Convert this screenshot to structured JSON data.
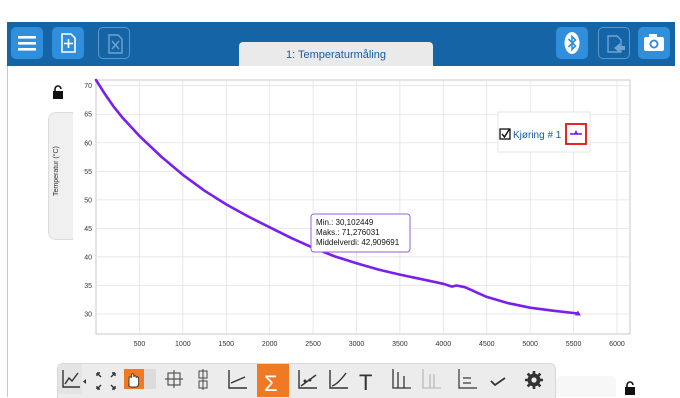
{
  "app": {
    "tab_label": "1: Temperaturmåling"
  },
  "topbar": {
    "left_buttons": [
      {
        "icon": "menu-icon"
      },
      {
        "icon": "new-page-icon"
      },
      {
        "icon": "delete-page-icon"
      }
    ],
    "right_buttons": [
      {
        "icon": "bluetooth-icon"
      },
      {
        "icon": "export-icon"
      },
      {
        "icon": "camera-icon"
      }
    ],
    "colors": {
      "bar": "#1565a6",
      "button": "#2f8fdc"
    }
  },
  "graph": {
    "ylabel": "Temperatur (°C)",
    "legend": {
      "label": "Kjøring # 1",
      "checked": true
    },
    "stats": {
      "min": "Min.: 30,102449",
      "max": "Maks.: 71,276031",
      "mean": "Middelverdi: 42,909691"
    }
  },
  "chart_data": {
    "type": "line",
    "xlim": [
      0,
      6150
    ],
    "ylim": [
      26.5,
      71
    ],
    "x_ticks": [
      "500",
      "1000",
      "1500",
      "2000",
      "2500",
      "3000",
      "3500",
      "4000",
      "4500",
      "5000",
      "5500",
      "6000"
    ],
    "y_ticks": [
      "30",
      "35",
      "40",
      "45",
      "50",
      "55",
      "60",
      "65",
      "70"
    ],
    "grid": true,
    "legend_position": "top-right",
    "series": [
      {
        "name": "Kjøring # 1",
        "color": "#7a1fe8",
        "x": [
          0,
          100,
          200,
          300,
          500,
          750,
          1000,
          1250,
          1500,
          1750,
          2000,
          2250,
          2500,
          2750,
          3000,
          3250,
          3500,
          3750,
          4000,
          4100,
          4150,
          4250,
          4500,
          4750,
          5000,
          5250,
          5550
        ],
        "y": [
          71,
          68.6,
          66.4,
          64.5,
          61.2,
          57.6,
          54.4,
          51.6,
          49.2,
          47.1,
          45.2,
          43.3,
          41.6,
          40.1,
          38.9,
          37.8,
          36.9,
          36.1,
          35.3,
          34.8,
          35.0,
          34.7,
          33.0,
          31.9,
          31.1,
          30.6,
          30.1
        ]
      }
    ]
  },
  "toolbar": {
    "tools": [
      {
        "icon": "graph-options-icon"
      },
      {
        "icon": "autoscale-icon"
      },
      {
        "icon": "pan-icon",
        "active": true
      },
      {
        "icon": "examine-icon"
      },
      {
        "icon": "zoom-icon"
      },
      {
        "icon": "tangent-icon"
      },
      {
        "icon": "statistics-icon",
        "active": true
      },
      {
        "icon": "linear-fit-icon"
      },
      {
        "icon": "curve-fit-icon"
      },
      {
        "icon": "text-annotation-icon"
      },
      {
        "icon": "integral-icon"
      },
      {
        "icon": "integral-area-icon"
      },
      {
        "icon": "delta-icon"
      },
      {
        "icon": "check-icon"
      },
      {
        "icon": "settings-icon"
      }
    ],
    "active_color": "#f07a24"
  }
}
